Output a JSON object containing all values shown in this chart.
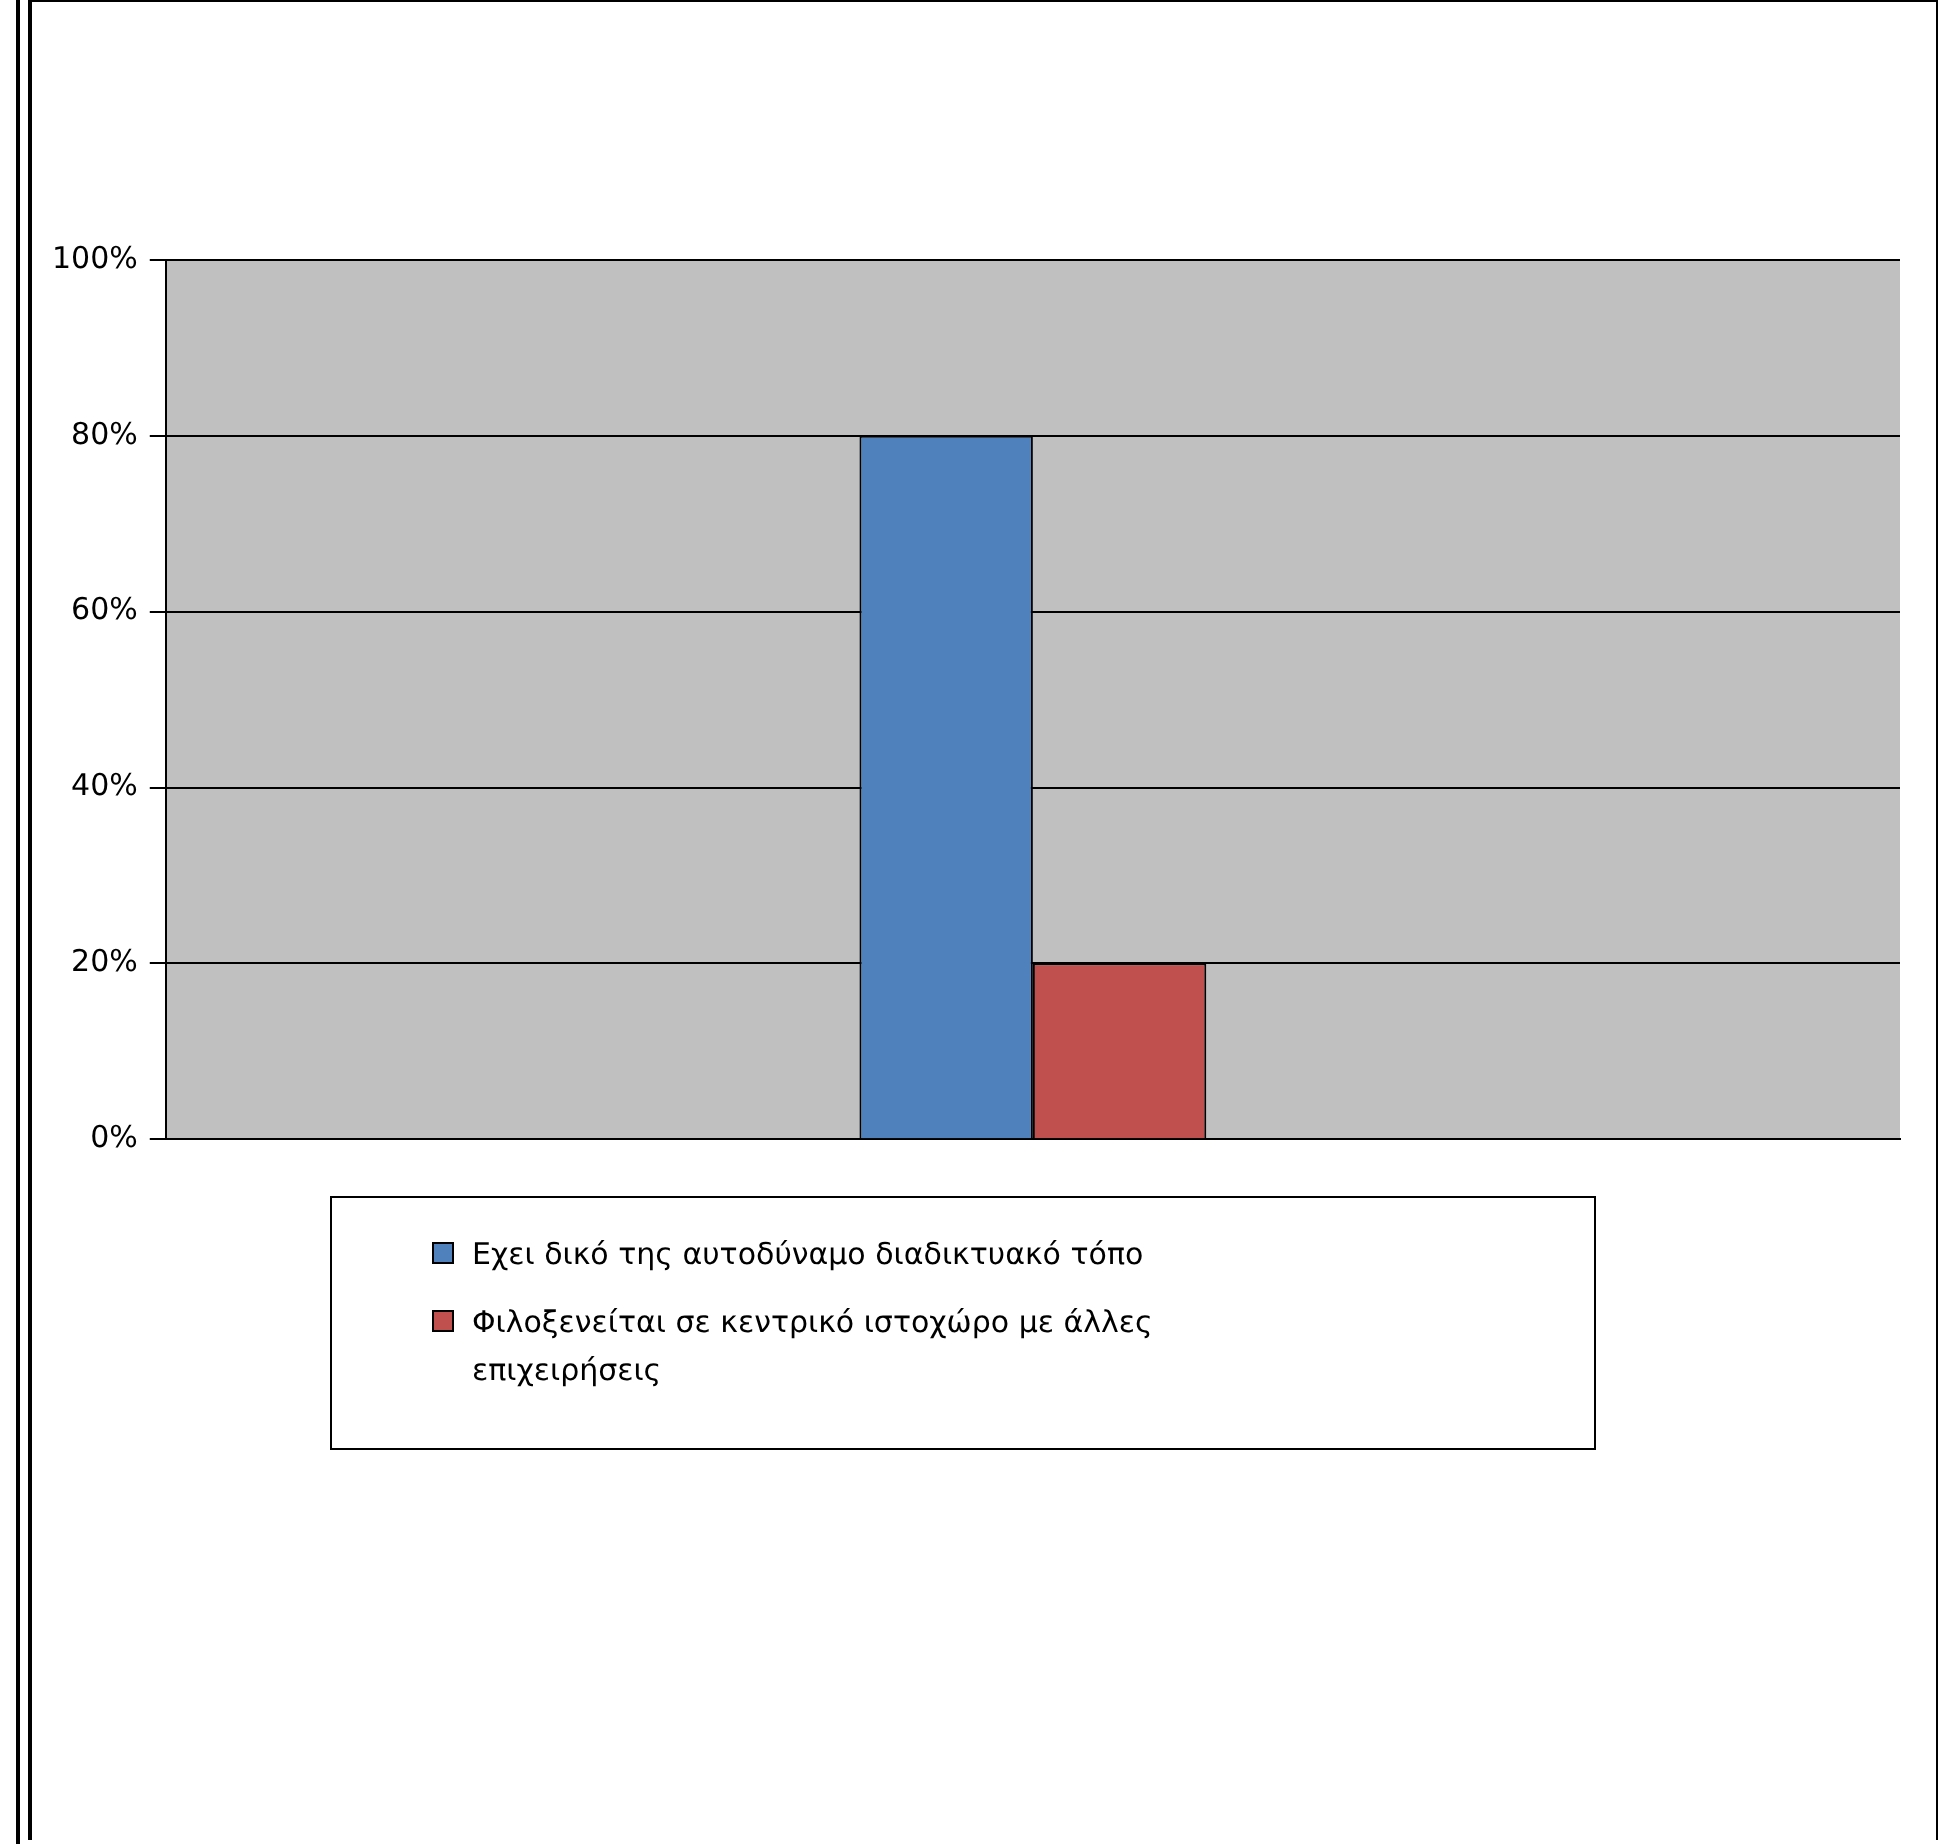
{
  "chart_data": {
    "type": "bar",
    "categories": [
      null
    ],
    "series": [
      {
        "name": "Εχει δικό της αυτοδύναμο διαδικτυακό τόπο",
        "color": "#4f81bd",
        "values": [
          80
        ]
      },
      {
        "name": "Φιλοξενείται σε κεντρικό ιστοχώρο με άλλες επιχειρήσεις",
        "color": "#c0504d",
        "values": [
          20
        ]
      }
    ],
    "ylim": [
      0,
      100
    ],
    "yticks": [
      {
        "value": 0,
        "label": "0%"
      },
      {
        "value": 20,
        "label": "20%"
      },
      {
        "value": 40,
        "label": "40%"
      },
      {
        "value": 60,
        "label": "60%"
      },
      {
        "value": 80,
        "label": "80%"
      },
      {
        "value": 100,
        "label": "100%"
      }
    ],
    "grid": "y",
    "legend": "bottom"
  }
}
